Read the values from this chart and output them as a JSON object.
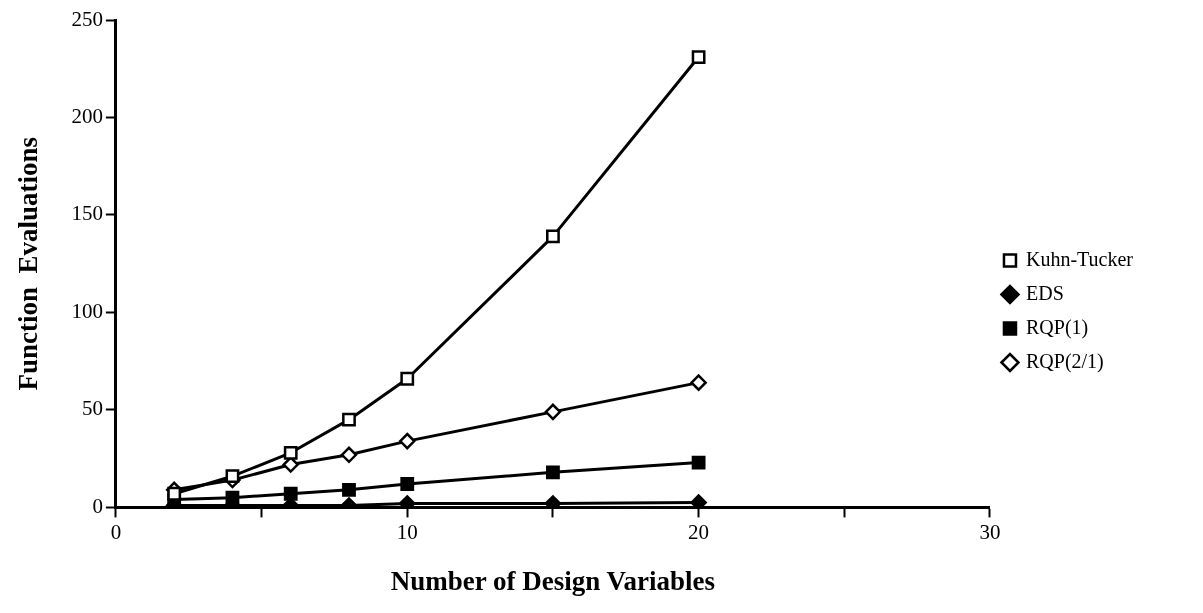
{
  "chart_data": {
    "type": "line",
    "xlabel": "Number of Design Variables",
    "ylabel": "Function  Evaluations",
    "x": [
      2,
      4,
      6,
      8,
      10,
      15,
      20
    ],
    "series": [
      {
        "name": "Kuhn-Tucker",
        "color": "#000000",
        "marker": "square",
        "values": [
          7,
          16,
          28,
          45,
          66,
          139,
          231
        ]
      },
      {
        "name": "EDS",
        "color": "#000000",
        "marker": "diamond",
        "values": [
          1,
          1,
          1,
          1,
          2,
          2,
          2.5
        ]
      },
      {
        "name": "RQP(1)",
        "color": "#000000",
        "marker": "square",
        "values": [
          4,
          5,
          7,
          9,
          12,
          18,
          23
        ]
      },
      {
        "name": "RQP(2/1)",
        "color": "#000000",
        "marker": "diamond",
        "values": [
          9,
          14,
          22,
          27,
          34,
          49,
          64
        ]
      }
    ],
    "xlim": [
      0,
      30
    ],
    "xticks": [
      0,
      {
        "value": 5,
        "label": null
      },
      10,
      {
        "value": 15,
        "label": null
      },
      20,
      {
        "value": 25,
        "label": null
      },
      30
    ],
    "ylim": [
      0,
      250
    ],
    "yticks": [
      0,
      50,
      100,
      150,
      200,
      250
    ],
    "grid": false,
    "legend": "right",
    "line_style": "solid"
  }
}
